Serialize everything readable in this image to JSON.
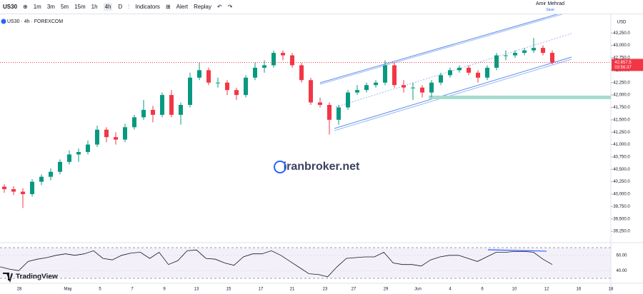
{
  "toolbar": {
    "symbol": "US30",
    "intervals": [
      "1m",
      "3m",
      "5m",
      "15m",
      "1h",
      "4h",
      "D"
    ],
    "indicators": "Indicators",
    "alert": "Alert",
    "replay": "Replay",
    "user": "Amir Mehrad",
    "save": "Save"
  },
  "chart_data": {
    "type": "candlestick",
    "title": "US30 · 4h · FOREXCOM",
    "currency": "USD",
    "colors": {
      "up": "#089981",
      "down": "#f23645"
    },
    "x_labels": [
      "28",
      "May",
      "5",
      "7",
      "9",
      "13",
      "15",
      "17",
      "21",
      "23",
      "27",
      "29",
      "Jun",
      "4",
      "6",
      "10",
      "12",
      "16",
      "18"
    ],
    "candles": [
      [
        40150,
        40200,
        40030,
        40100
      ],
      [
        40100,
        40160,
        39980,
        40050
      ],
      [
        40050,
        40120,
        39720,
        40000
      ],
      [
        40000,
        40300,
        39950,
        40250
      ],
      [
        40250,
        40400,
        40180,
        40350
      ],
      [
        40350,
        40520,
        40280,
        40450
      ],
      [
        40450,
        40700,
        40400,
        40650
      ],
      [
        40650,
        40880,
        40600,
        40800
      ],
      [
        40800,
        40920,
        40650,
        40850
      ],
      [
        40850,
        41080,
        40800,
        41000
      ],
      [
        41000,
        41380,
        40950,
        41300
      ],
      [
        41300,
        41350,
        41050,
        41150
      ],
      [
        41150,
        41250,
        41000,
        41100
      ],
      [
        41100,
        41420,
        41050,
        41350
      ],
      [
        41350,
        41600,
        41300,
        41550
      ],
      [
        41550,
        41900,
        41500,
        41700
      ],
      [
        41700,
        41780,
        41450,
        41600
      ],
      [
        41600,
        42050,
        41550,
        42000
      ],
      [
        42000,
        42100,
        41550,
        41600
      ],
      [
        41600,
        41850,
        41400,
        41800
      ],
      [
        41800,
        42450,
        41750,
        42350
      ],
      [
        42350,
        42650,
        42300,
        42500
      ],
      [
        42500,
        42550,
        42200,
        42250
      ],
      [
        42250,
        42350,
        42150,
        42250
      ],
      [
        42250,
        42300,
        42000,
        42100
      ],
      [
        42100,
        42150,
        41900,
        42000
      ],
      [
        42000,
        42400,
        41950,
        42350
      ],
      [
        42350,
        42650,
        42300,
        42550
      ],
      [
        42550,
        42700,
        42450,
        42600
      ],
      [
        42600,
        42900,
        42550,
        42850
      ],
      [
        42850,
        42900,
        42700,
        42800
      ],
      [
        42800,
        42850,
        42550,
        42600
      ],
      [
        42600,
        42650,
        42250,
        42300
      ],
      [
        42300,
        42350,
        41800,
        41850
      ],
      [
        41850,
        41950,
        41750,
        41800
      ],
      [
        41800,
        41850,
        41200,
        41500
      ],
      [
        41500,
        41800,
        41400,
        41750
      ],
      [
        41750,
        42100,
        41700,
        42050
      ],
      [
        42050,
        42200,
        42000,
        42100
      ],
      [
        42100,
        42250,
        42050,
        42200
      ],
      [
        42200,
        42300,
        42150,
        42250
      ],
      [
        42250,
        42700,
        42200,
        42600
      ],
      [
        42600,
        42650,
        42150,
        42200
      ],
      [
        42200,
        42300,
        42050,
        42150
      ],
      [
        42150,
        42250,
        41900,
        42150
      ],
      [
        42150,
        42200,
        41950,
        42050
      ],
      [
        42050,
        42300,
        41950,
        42250
      ],
      [
        42250,
        42450,
        42200,
        42400
      ],
      [
        42400,
        42550,
        42350,
        42500
      ],
      [
        42500,
        42600,
        42450,
        42550
      ],
      [
        42550,
        42600,
        42400,
        42450
      ],
      [
        42450,
        42500,
        42250,
        42350
      ],
      [
        42350,
        42600,
        42300,
        42550
      ],
      [
        42550,
        42850,
        42500,
        42800
      ],
      [
        42800,
        42900,
        42700,
        42800
      ],
      [
        42800,
        42900,
        42750,
        42850
      ],
      [
        42850,
        42950,
        42800,
        42900
      ],
      [
        42900,
        43150,
        42850,
        42950
      ],
      [
        42950,
        43000,
        42800,
        42850
      ],
      [
        42850,
        42900,
        42620,
        42657.5
      ]
    ],
    "ylim": [
      39050,
      43600
    ],
    "yticks": [
      {
        "value": 43250,
        "label": "43,250.0"
      },
      {
        "value": 43000,
        "label": "43,000.0"
      },
      {
        "value": 42750,
        "label": "42,750.0"
      },
      {
        "value": 42500,
        "label": "42,500.0"
      },
      {
        "value": 42250,
        "label": "42,250.0"
      },
      {
        "value": 42000,
        "label": "42,000.0"
      },
      {
        "value": 41750,
        "label": "41,750.0"
      },
      {
        "value": 41500,
        "label": "41,500.0"
      },
      {
        "value": 41250,
        "label": "41,250.0"
      },
      {
        "value": 41000,
        "label": "41,000.0"
      },
      {
        "value": 40750,
        "label": "40,750.0"
      },
      {
        "value": 40500,
        "label": "40,500.0"
      },
      {
        "value": 40250,
        "label": "40,250.0"
      },
      {
        "value": 40000,
        "label": "40,000.0"
      },
      {
        "value": 39750,
        "label": "39,750.0"
      },
      {
        "value": 39500,
        "label": "39,500.0"
      },
      {
        "value": 39250,
        "label": "39,250.0"
      }
    ],
    "last_price": {
      "value": 42657.5,
      "label": "42,657.5"
    },
    "countdown": "03:56:37",
    "rsi": {
      "values": [
        45,
        42,
        40,
        52,
        55,
        57,
        60,
        62,
        60,
        62,
        66,
        56,
        54,
        60,
        63,
        64,
        56,
        64,
        48,
        53,
        66,
        67,
        56,
        55,
        50,
        47,
        58,
        62,
        62,
        66,
        60,
        52,
        44,
        36,
        35,
        32,
        45,
        56,
        57,
        58,
        58,
        64,
        50,
        48,
        48,
        46,
        54,
        58,
        60,
        60,
        56,
        52,
        58,
        64,
        64,
        65,
        65,
        64,
        55,
        48
      ],
      "ylim": [
        30,
        71
      ],
      "bands": [
        70,
        30
      ],
      "yticks": [
        {
          "value": 60,
          "label": "60.00"
        },
        {
          "value": 40,
          "label": "40.00"
        }
      ]
    }
  },
  "watermark": "iranbroker.net",
  "brand": "TradingView"
}
